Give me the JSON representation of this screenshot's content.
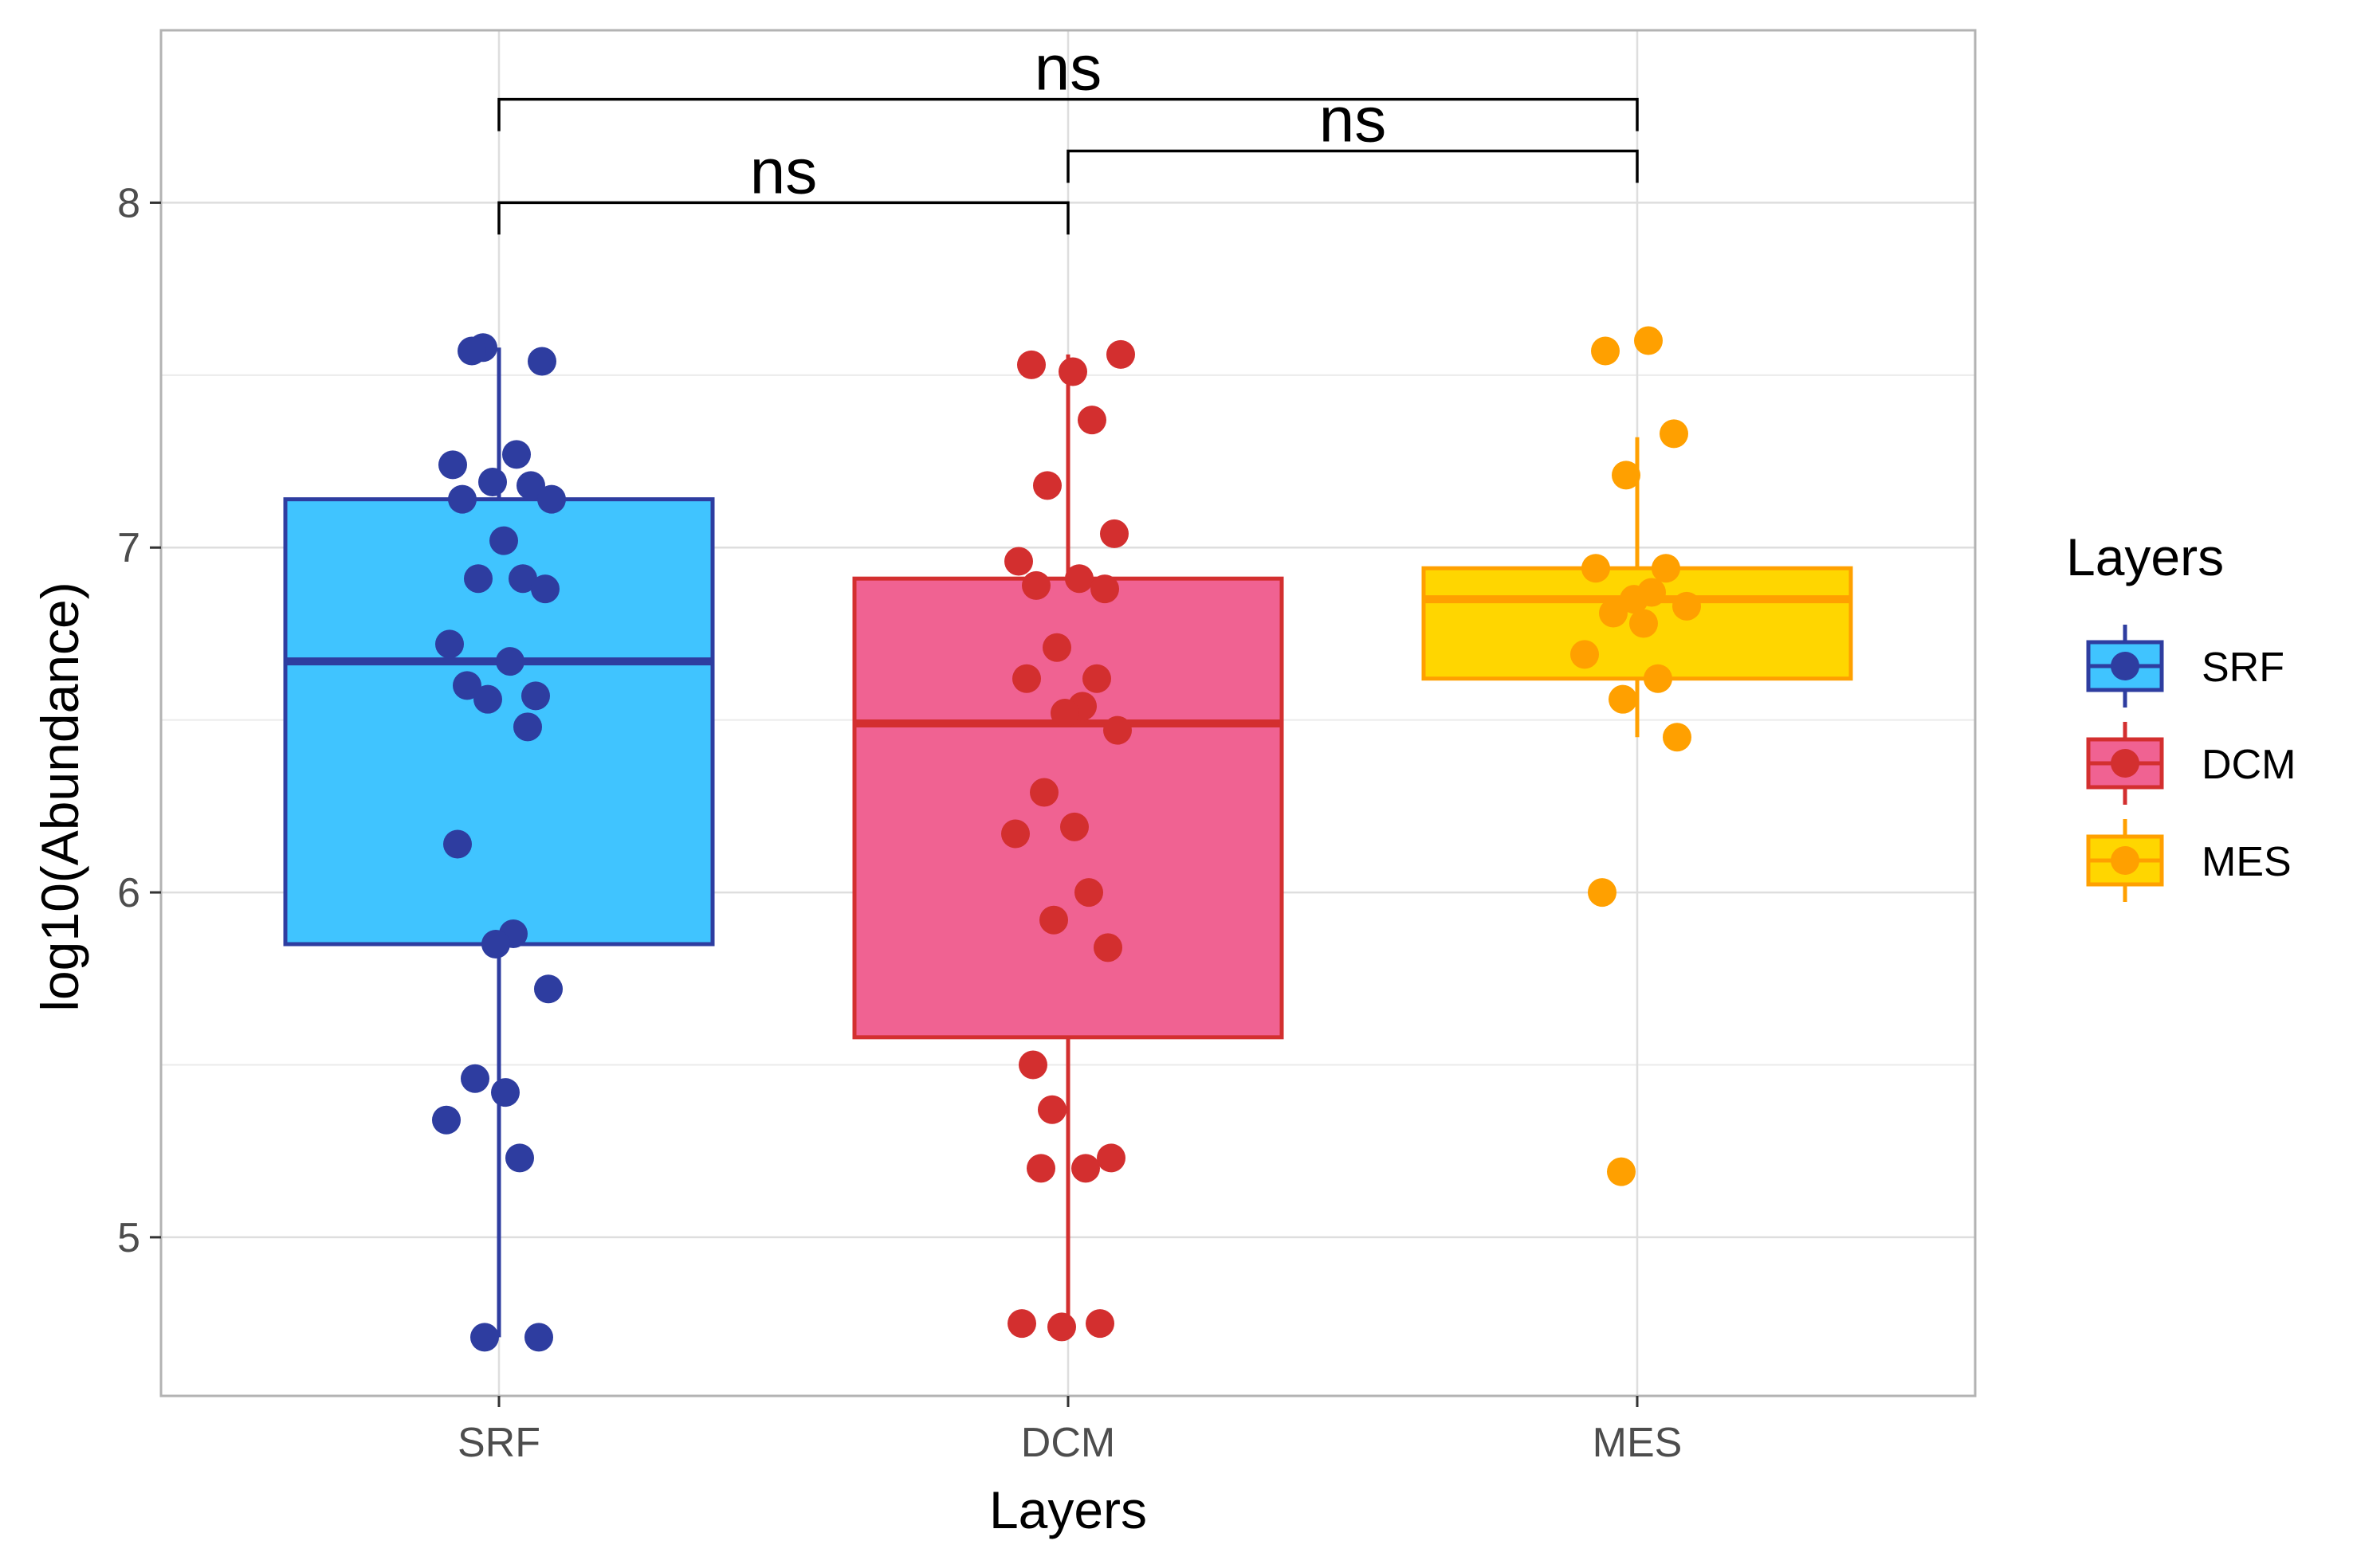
{
  "chart_data": {
    "type": "boxplot",
    "xlabel": "Layers",
    "ylabel": "log10(Abundance)",
    "categories": [
      "SRF",
      "DCM",
      "MES"
    ],
    "ylim": [
      4.54,
      8.5
    ],
    "yticks": [
      5,
      6,
      7,
      8
    ],
    "grid": true,
    "legend": {
      "title": "Layers",
      "placement": "right",
      "entries": [
        "SRF",
        "DCM",
        "MES"
      ]
    },
    "series": [
      {
        "name": "SRF",
        "fill": "#40C4FF",
        "stroke": "#2E3DA0",
        "point_color": "#2E3DA0",
        "box": {
          "q1": 5.85,
          "median": 6.67,
          "q3": 7.14,
          "whisker_low": 4.71,
          "whisker_high": 7.58
        },
        "points": [
          7.58,
          7.54,
          7.57,
          7.27,
          7.24,
          7.18,
          7.19,
          7.14,
          7.14,
          7.02,
          6.91,
          6.91,
          6.88,
          6.72,
          6.67,
          6.6,
          6.57,
          6.56,
          6.48,
          6.14,
          5.88,
          5.85,
          5.72,
          5.46,
          5.42,
          5.34,
          5.23,
          4.71,
          4.71
        ]
      },
      {
        "name": "DCM",
        "fill": "#F06292",
        "stroke": "#D32F2F",
        "point_color": "#D32F2F",
        "box": {
          "q1": 5.58,
          "median": 6.49,
          "q3": 6.91,
          "whisker_low": 4.74,
          "whisker_high": 7.56
        },
        "points": [
          7.56,
          7.53,
          7.51,
          7.37,
          7.18,
          7.04,
          6.96,
          6.91,
          6.89,
          6.88,
          6.71,
          6.62,
          6.62,
          6.54,
          6.52,
          6.47,
          6.29,
          6.19,
          6.17,
          6.0,
          5.92,
          5.84,
          5.5,
          5.37,
          5.23,
          5.2,
          5.2,
          4.75,
          4.75,
          4.74
        ]
      },
      {
        "name": "MES",
        "fill": "#FFD600",
        "stroke": "#FFA000",
        "point_color": "#FFA000",
        "box": {
          "q1": 6.62,
          "median": 6.85,
          "q3": 6.94,
          "whisker_low": 6.45,
          "whisker_high": 7.32
        },
        "points": [
          7.6,
          7.57,
          7.33,
          7.21,
          6.94,
          6.94,
          6.87,
          6.85,
          6.83,
          6.81,
          6.78,
          6.69,
          6.62,
          6.56,
          6.45,
          6.0,
          5.19
        ]
      }
    ],
    "annotations": [
      {
        "text": "ns",
        "from": "SRF",
        "to": "DCM",
        "y": 8.0
      },
      {
        "text": "ns",
        "from": "DCM",
        "to": "MES",
        "y": 8.15
      },
      {
        "text": "ns",
        "from": "SRF",
        "to": "MES",
        "y": 8.3
      }
    ]
  }
}
